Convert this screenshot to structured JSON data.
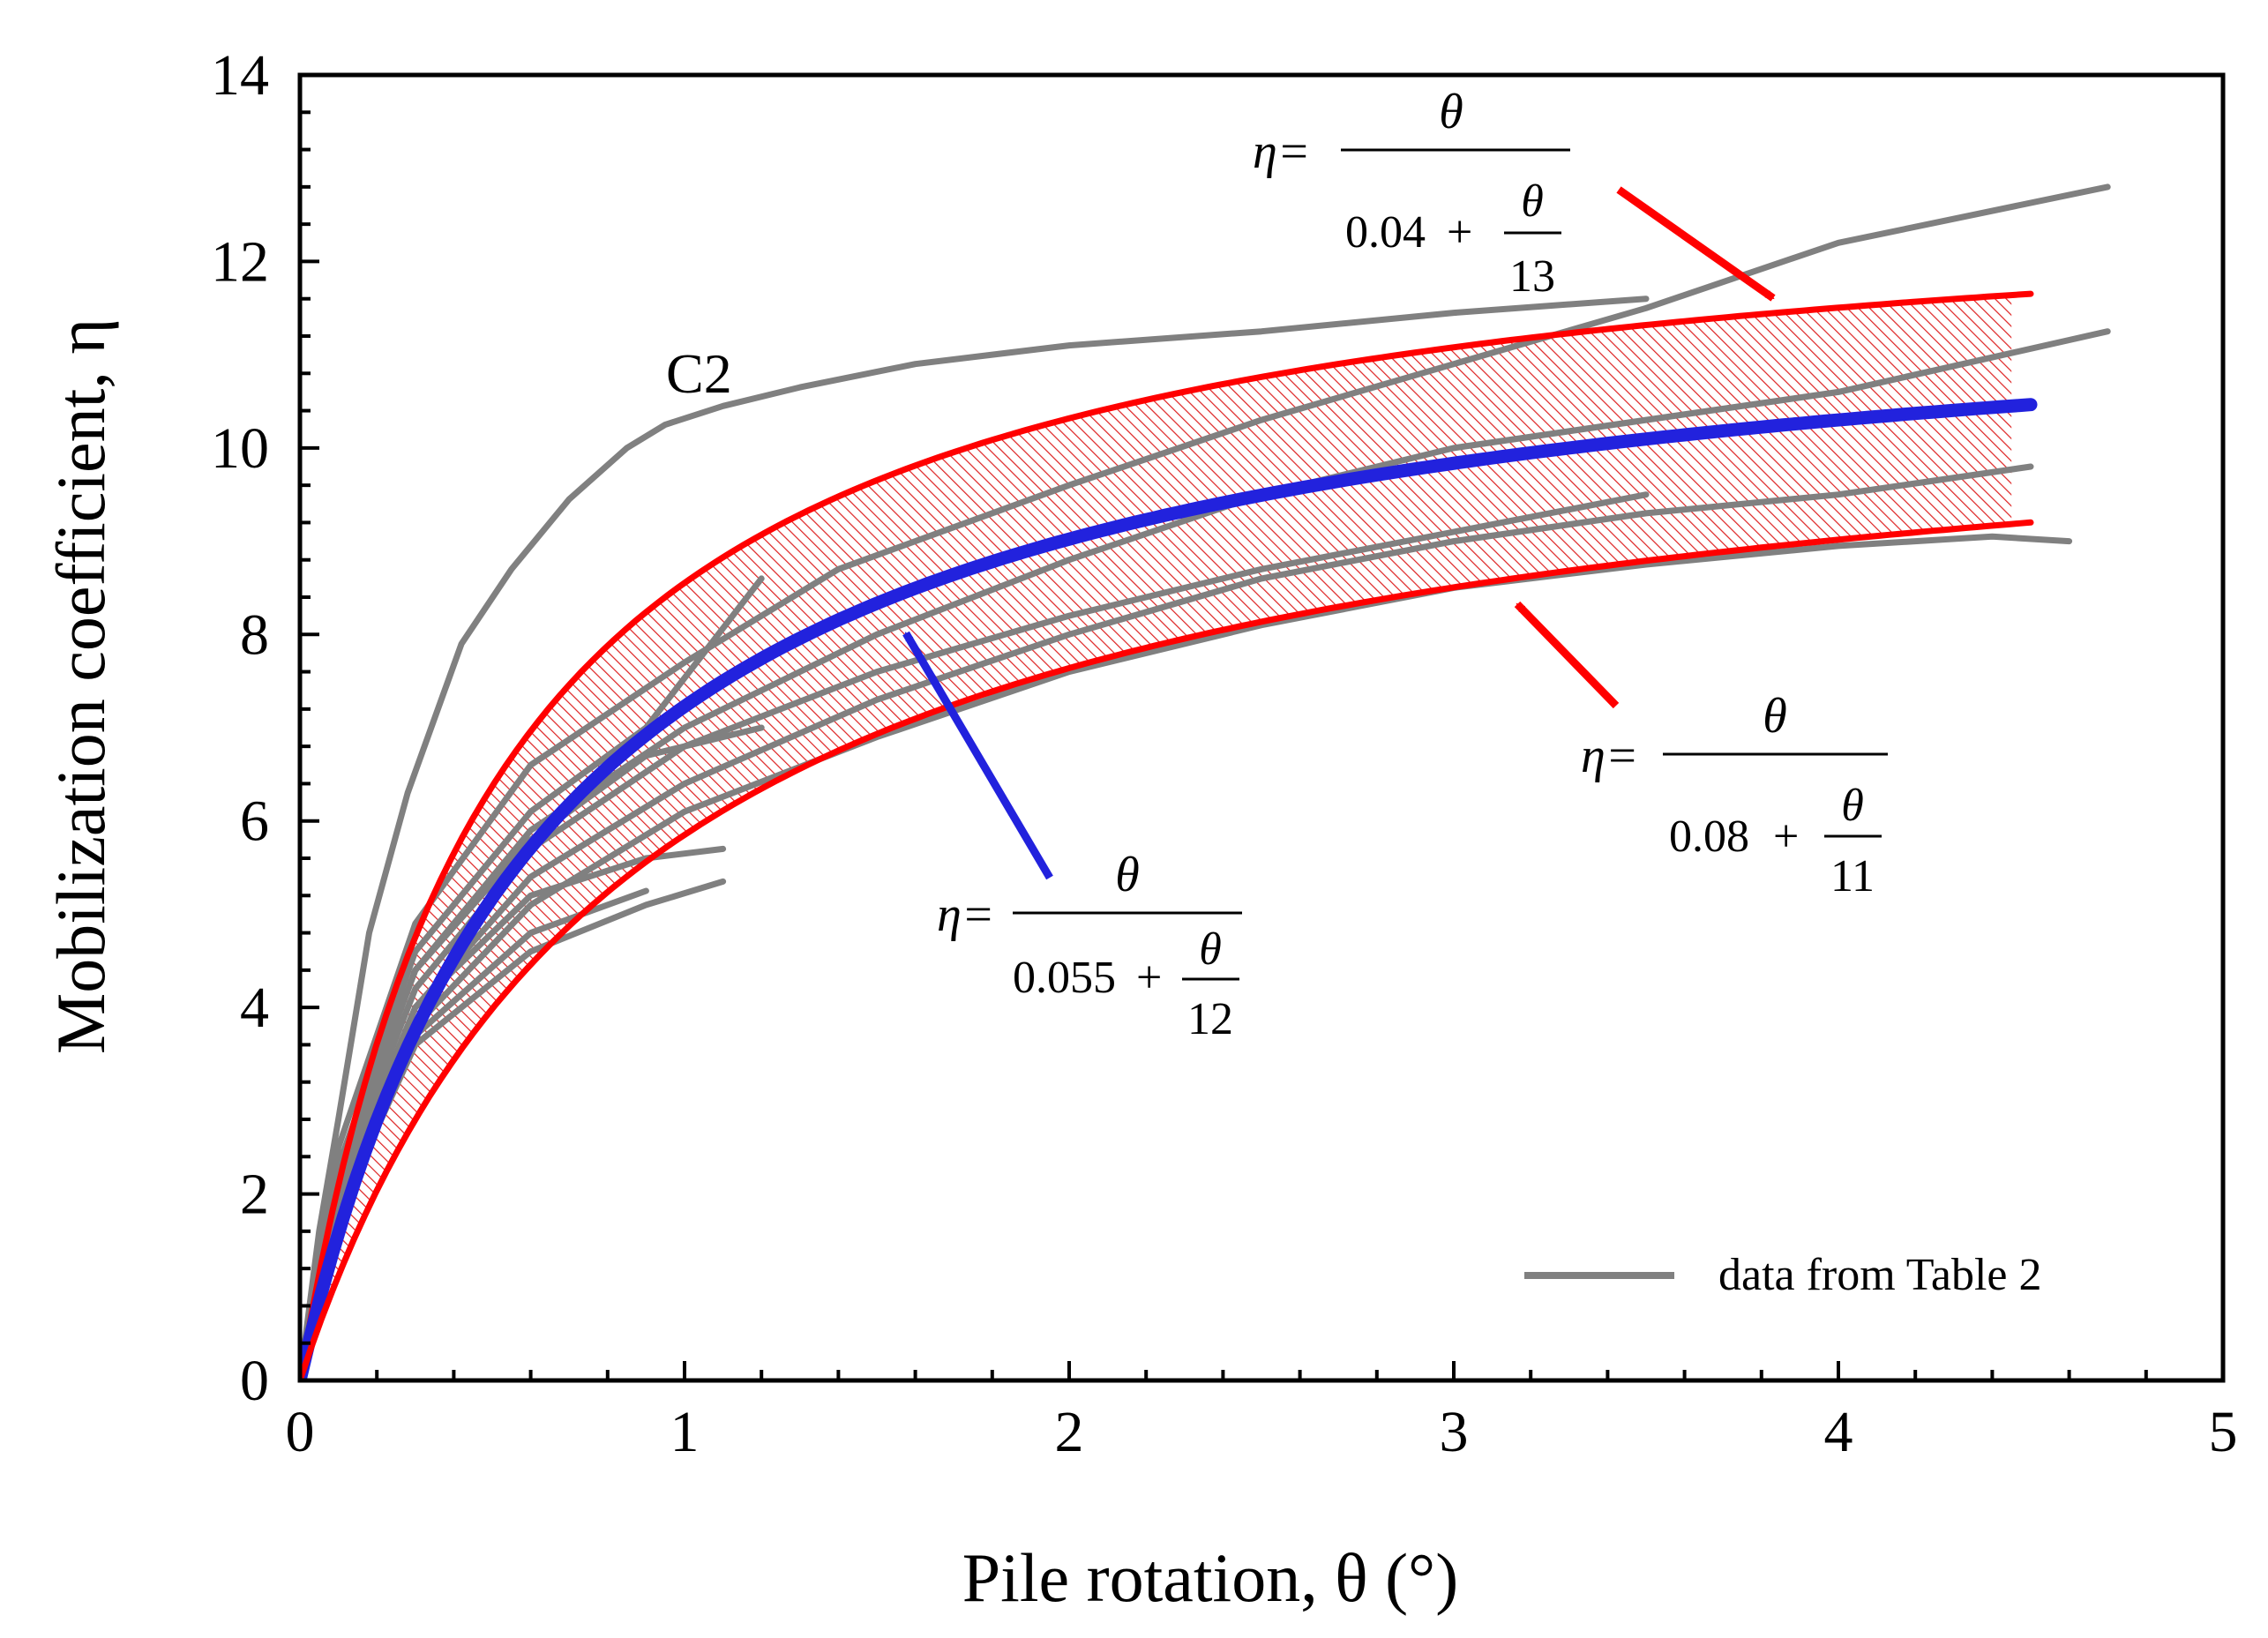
{
  "chart_data": {
    "type": "line",
    "xlabel": "Pile rotation, θ (°)",
    "ylabel": "Mobilization coefficient, η",
    "xlim": [
      0,
      5
    ],
    "ylim": [
      0,
      14
    ],
    "x_ticks": [
      0,
      1,
      2,
      3,
      4,
      5
    ],
    "y_ticks": [
      0,
      2,
      4,
      6,
      8,
      10,
      12,
      14
    ],
    "x_minor_step": 0.2,
    "y_minor_step": 0.4,
    "grid": false,
    "legend": {
      "position": "bottom-right",
      "entries": [
        "data from Table 2"
      ]
    },
    "fitted_curves": [
      {
        "name": "upper bound",
        "color": "#ff0000",
        "a": 0.04,
        "b": 13,
        "x_max": 4.5,
        "eq": {
          "lhs": "η=",
          "num": "θ",
          "const": "0.04",
          "plus": "+",
          "frac_num": "θ",
          "frac_den": "13"
        }
      },
      {
        "name": "mean",
        "color": "#2222dd",
        "a": 0.055,
        "b": 12,
        "x_max": 4.5,
        "eq": {
          "lhs": "η=",
          "num": "θ",
          "const": "0.055",
          "plus": "+",
          "frac_num": "θ",
          "frac_den": "12"
        }
      },
      {
        "name": "lower bound",
        "color": "#ff0000",
        "a": 0.08,
        "b": 11,
        "x_max": 4.5,
        "eq": {
          "lhs": "η=",
          "num": "θ",
          "const": "0.08",
          "plus": "+",
          "frac_num": "θ",
          "frac_den": "11"
        }
      }
    ],
    "shaded_band": {
      "between": [
        "upper bound",
        "lower bound"
      ],
      "x_max": 4.45,
      "color": "#dd2222",
      "pattern": "diagonal-hatch"
    },
    "annotations": [
      {
        "text": "C2",
        "x": 0.92,
        "y": 10.45
      }
    ],
    "series": [
      {
        "name": "C2",
        "color": "#808080",
        "points": [
          [
            0,
            0
          ],
          [
            0.05,
            1.6
          ],
          [
            0.1,
            2.8
          ],
          [
            0.18,
            4.8
          ],
          [
            0.28,
            6.3
          ],
          [
            0.42,
            7.9
          ],
          [
            0.55,
            8.7
          ],
          [
            0.7,
            9.45
          ],
          [
            0.85,
            10.0
          ],
          [
            0.95,
            10.25
          ],
          [
            1.1,
            10.45
          ],
          [
            1.3,
            10.65
          ],
          [
            1.6,
            10.9
          ],
          [
            2.0,
            11.1
          ],
          [
            2.5,
            11.25
          ],
          [
            3.0,
            11.45
          ],
          [
            3.5,
            11.6
          ]
        ]
      },
      {
        "name": "data",
        "color": "#808080",
        "points": [
          [
            0,
            0
          ],
          [
            0.1,
            2.5
          ],
          [
            0.3,
            4.9
          ],
          [
            0.6,
            6.6
          ],
          [
            1.0,
            7.7
          ],
          [
            1.4,
            8.7
          ],
          [
            2.0,
            9.6
          ],
          [
            2.5,
            10.3
          ],
          [
            3.0,
            10.9
          ],
          [
            3.5,
            11.5
          ],
          [
            4.0,
            12.2
          ],
          [
            4.7,
            12.8
          ]
        ]
      },
      {
        "name": "data",
        "color": "#808080",
        "points": [
          [
            0,
            0
          ],
          [
            0.1,
            2.2
          ],
          [
            0.3,
            4.4
          ],
          [
            0.6,
            5.9
          ],
          [
            1.0,
            7.0
          ],
          [
            1.5,
            8.0
          ],
          [
            2.0,
            8.8
          ],
          [
            2.5,
            9.5
          ],
          [
            3.0,
            10.0
          ],
          [
            3.5,
            10.3
          ],
          [
            4.0,
            10.6
          ],
          [
            4.7,
            11.25
          ]
        ]
      },
      {
        "name": "data",
        "color": "#808080",
        "points": [
          [
            0,
            0
          ],
          [
            0.1,
            2.0
          ],
          [
            0.3,
            4.0
          ],
          [
            0.6,
            5.4
          ],
          [
            1.0,
            6.4
          ],
          [
            1.5,
            7.3
          ],
          [
            2.0,
            8.0
          ],
          [
            2.5,
            8.6
          ],
          [
            3.0,
            9.0
          ],
          [
            3.5,
            9.3
          ],
          [
            4.0,
            9.5
          ],
          [
            4.5,
            9.8
          ]
        ]
      },
      {
        "name": "data",
        "color": "#808080",
        "points": [
          [
            0,
            0
          ],
          [
            0.1,
            1.9
          ],
          [
            0.3,
            3.8
          ],
          [
            0.6,
            5.1
          ],
          [
            1.0,
            6.1
          ],
          [
            1.5,
            6.9
          ],
          [
            2.0,
            7.6
          ],
          [
            2.5,
            8.1
          ],
          [
            3.0,
            8.5
          ],
          [
            3.5,
            8.75
          ],
          [
            4.0,
            8.95
          ],
          [
            4.4,
            9.05
          ],
          [
            4.6,
            9.0
          ]
        ]
      },
      {
        "name": "data",
        "color": "#808080",
        "points": [
          [
            0,
            0
          ],
          [
            0.1,
            2.1
          ],
          [
            0.3,
            4.2
          ],
          [
            0.6,
            5.7
          ],
          [
            1.0,
            6.8
          ],
          [
            1.5,
            7.6
          ],
          [
            2.0,
            8.2
          ],
          [
            2.5,
            8.7
          ],
          [
            3.0,
            9.1
          ],
          [
            3.5,
            9.5
          ]
        ]
      },
      {
        "name": "data",
        "color": "#808080",
        "points": [
          [
            0,
            0
          ],
          [
            0.1,
            2.3
          ],
          [
            0.3,
            4.6
          ],
          [
            0.6,
            6.1
          ],
          [
            0.9,
            7.0
          ],
          [
            1.2,
            8.6
          ]
        ]
      },
      {
        "name": "data",
        "color": "#808080",
        "points": [
          [
            0,
            0
          ],
          [
            0.1,
            2.2
          ],
          [
            0.3,
            4.4
          ],
          [
            0.6,
            5.8
          ],
          [
            0.9,
            6.7
          ],
          [
            1.2,
            7.0
          ]
        ]
      },
      {
        "name": "data",
        "color": "#808080",
        "points": [
          [
            0,
            0
          ],
          [
            0.1,
            2.0
          ],
          [
            0.3,
            4.0
          ],
          [
            0.6,
            5.2
          ],
          [
            0.9,
            5.6
          ],
          [
            1.1,
            5.7
          ]
        ]
      },
      {
        "name": "data",
        "color": "#808080",
        "points": [
          [
            0,
            0
          ],
          [
            0.1,
            1.8
          ],
          [
            0.3,
            3.6
          ],
          [
            0.6,
            4.6
          ],
          [
            0.9,
            5.1
          ],
          [
            1.1,
            5.35
          ]
        ]
      },
      {
        "name": "data",
        "color": "#808080",
        "points": [
          [
            0,
            0
          ],
          [
            0.1,
            1.9
          ],
          [
            0.3,
            3.7
          ],
          [
            0.6,
            4.8
          ],
          [
            0.9,
            5.25
          ]
        ]
      }
    ]
  }
}
